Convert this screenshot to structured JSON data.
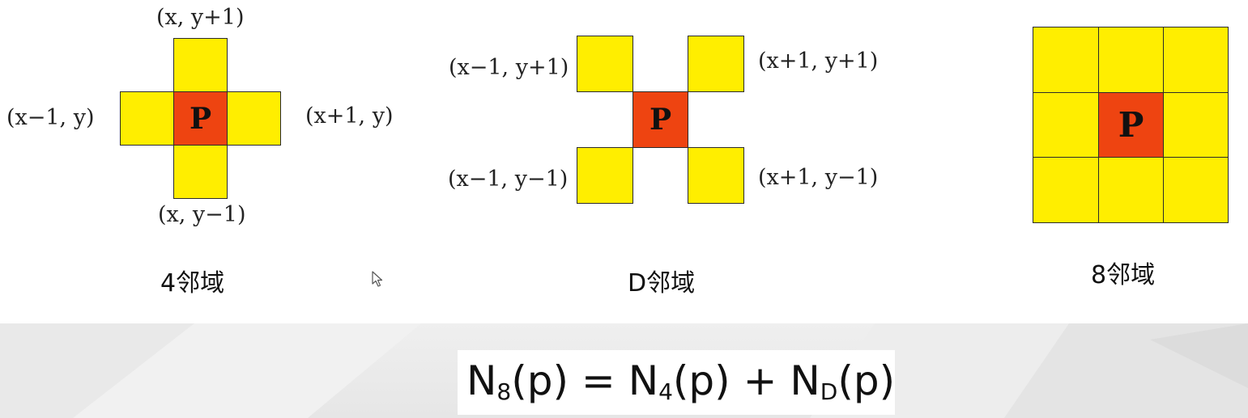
{
  "colors": {
    "neighbor_fill": "#ffee00",
    "center_fill": "#ee4411",
    "cell_border": "#2b2b2b"
  },
  "center_label": "P",
  "four_neighborhood": {
    "caption": "4邻域",
    "top": "(x, y+1)",
    "left": "(x−1, y)",
    "right": "(x+1, y)",
    "bottom": "(x, y−1)"
  },
  "d_neighborhood": {
    "caption": "D邻域",
    "top_left": "(x−1, y+1)",
    "top_right": "(x+1, y+1)",
    "bottom_left": "(x−1, y−1)",
    "bottom_right": "(x+1, y−1)"
  },
  "eight_neighborhood": {
    "caption": "8邻域"
  },
  "formula": {
    "n": "N",
    "sub_8": "8",
    "sub_4": "4",
    "sub_d": "D",
    "arg": "(p)",
    "equals": " = ",
    "plus": " + "
  },
  "cursor_icon": "mouse-pointer-icon"
}
